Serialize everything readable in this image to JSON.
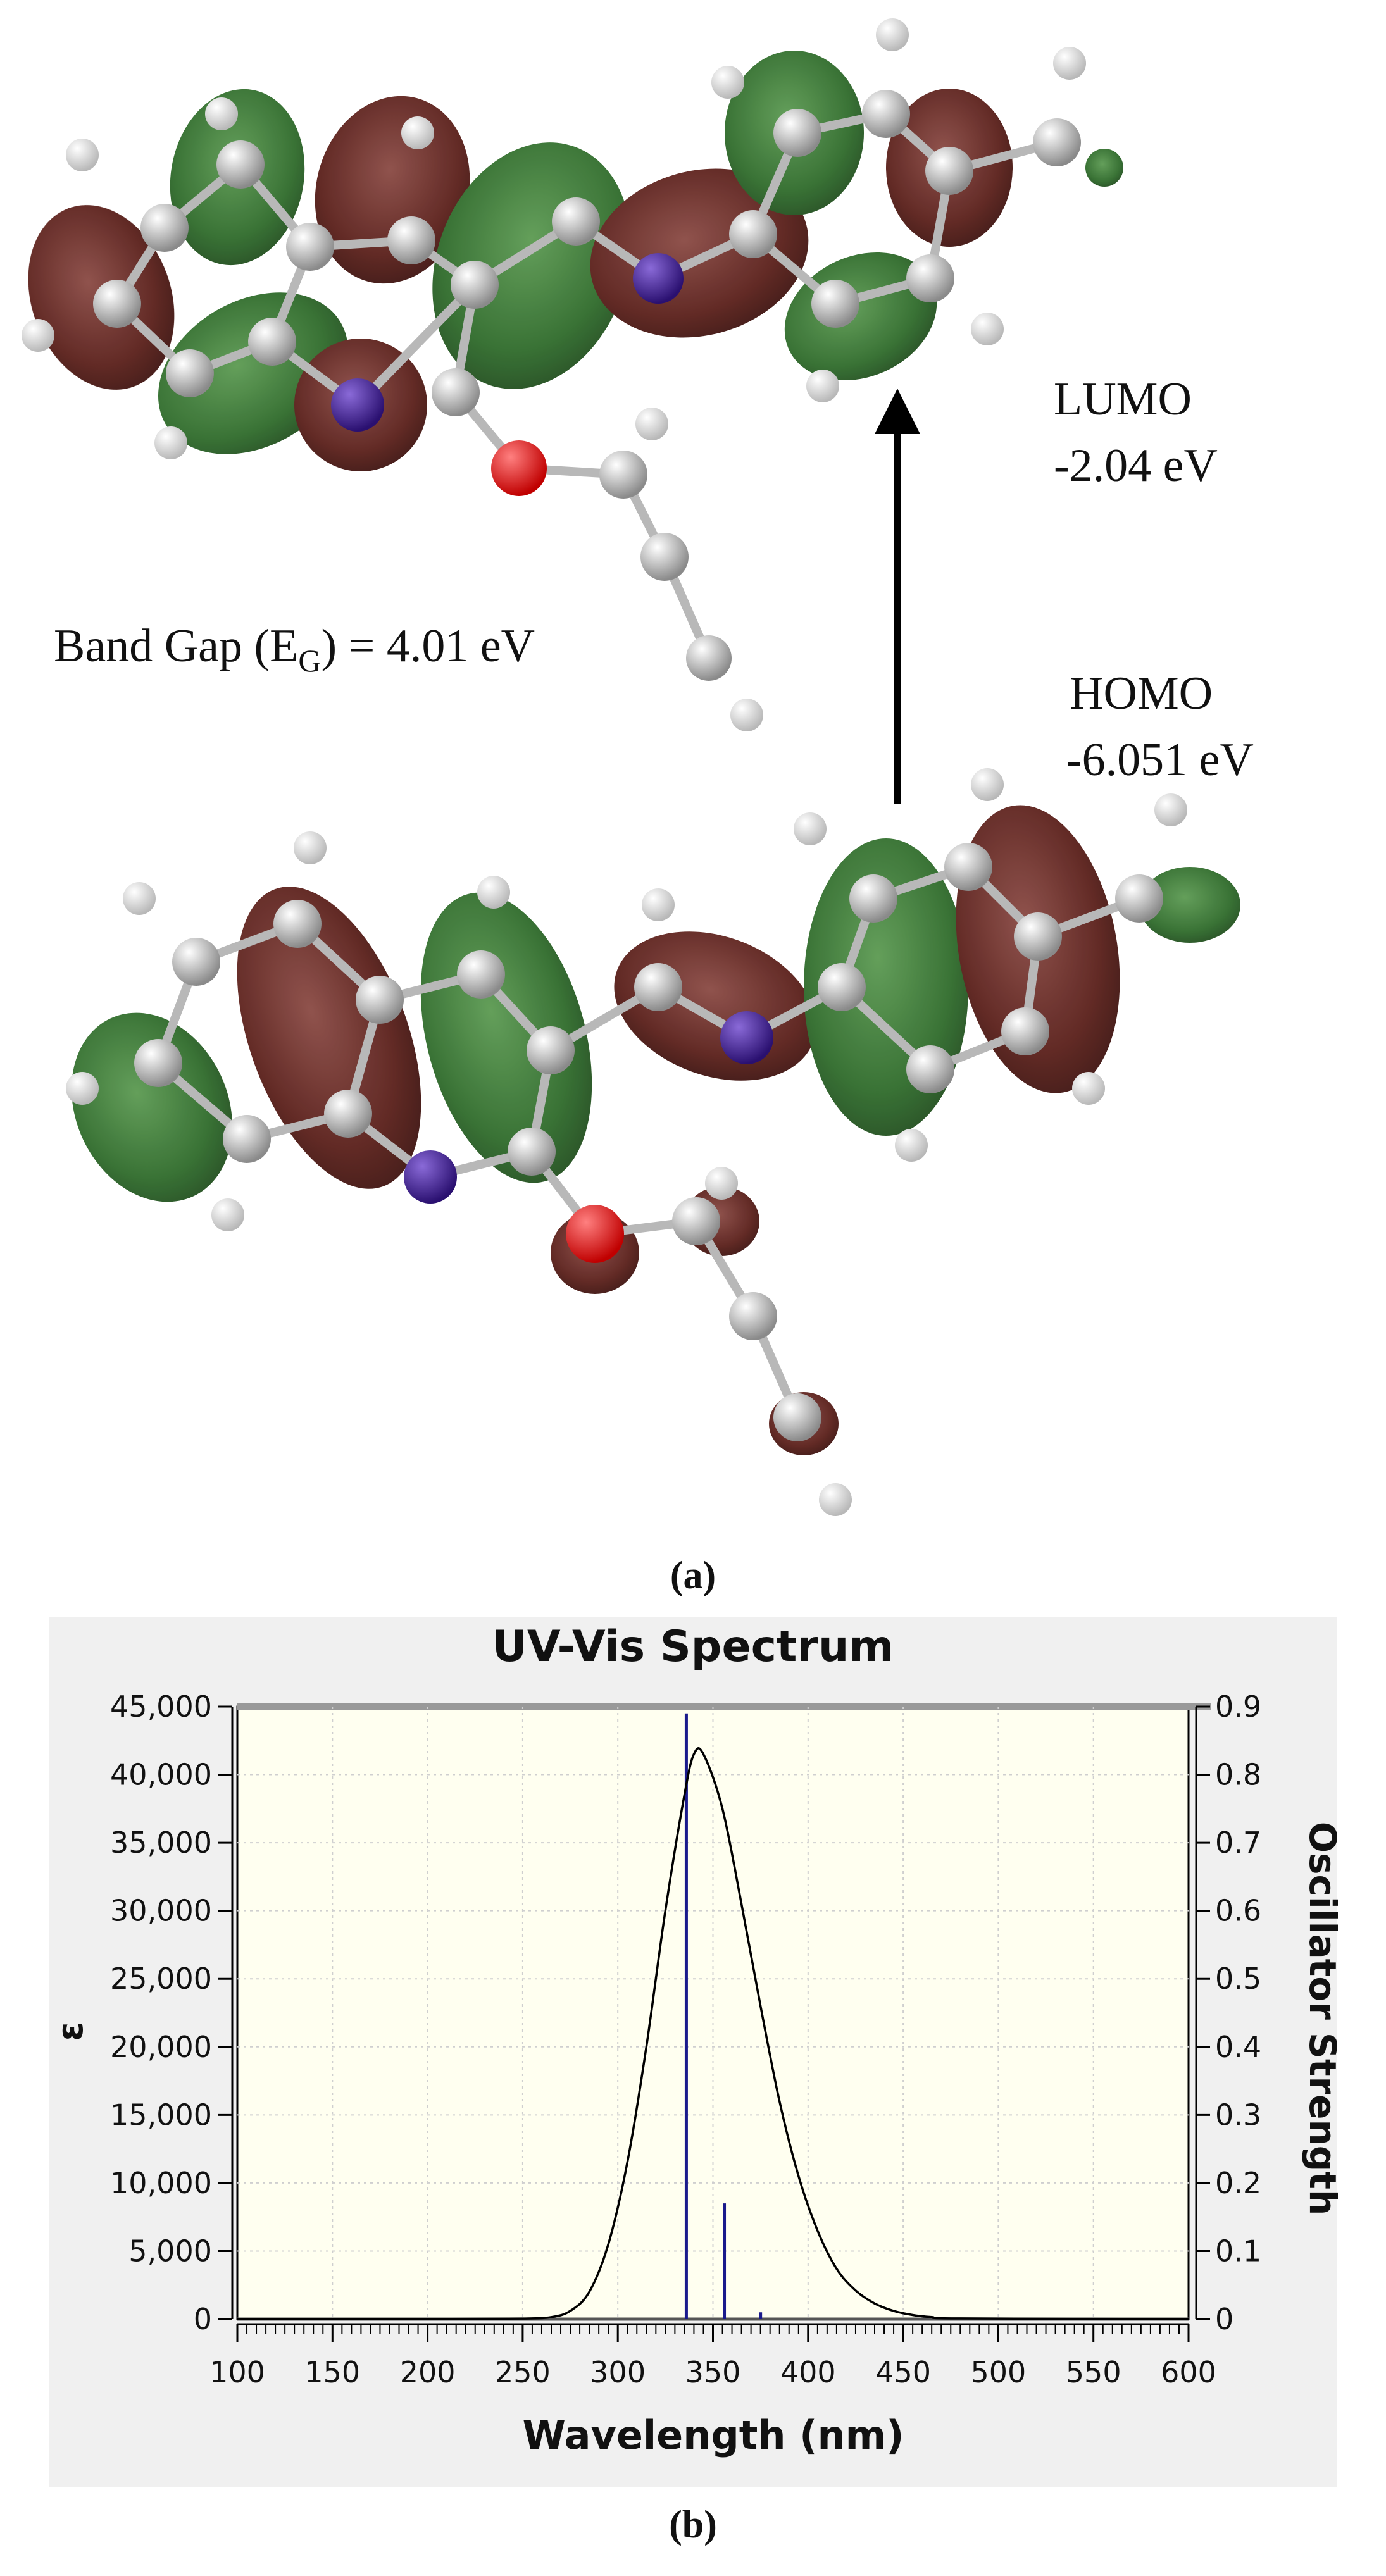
{
  "panel_a": {
    "label": "(a)",
    "lumo_label": "LUMO",
    "lumo_energy": "-2.04 eV",
    "homo_label": "HOMO",
    "homo_energy": "-6.051 eV",
    "band_gap_prefix": "Band Gap (E",
    "band_gap_sub": "G",
    "band_gap_suffix": ") = 4.01 eV",
    "colors": {
      "lobe_green": "#2f6b2b",
      "lobe_red": "#5a1f1a",
      "carbon": "#9a9a9a",
      "hydrogen": "#e6e6e6",
      "nitrogen": "#3a1f8f",
      "oxygen": "#d40000"
    }
  },
  "panel_b": {
    "label": "(b)"
  },
  "chart_data": {
    "type": "line",
    "title": "UV-Vis Spectrum",
    "xlabel": "Wavelength (nm)",
    "ylabel": "ε",
    "y2label": "Oscillator Strength",
    "xlim": [
      100,
      600
    ],
    "ylim": [
      0,
      45000
    ],
    "y2lim": [
      0,
      0.9
    ],
    "x_ticks": [
      "100",
      "150",
      "200",
      "250",
      "300",
      "350",
      "400",
      "450",
      "500",
      "550",
      "600"
    ],
    "y_ticks": [
      "0",
      "5,000",
      "10,000",
      "15,000",
      "20,000",
      "25,000",
      "30,000",
      "35,000",
      "40,000",
      "45,000"
    ],
    "y2_ticks": [
      "0",
      "0.1",
      "0.2",
      "0.3",
      "0.4",
      "0.5",
      "0.6",
      "0.7",
      "0.8",
      "0.9"
    ],
    "grid": true,
    "series": [
      {
        "kind": "curve",
        "x": [
          100,
          200,
          250,
          265,
          275,
          285,
          295,
          305,
          315,
          325,
          335,
          340,
          345,
          355,
          365,
          375,
          385,
          395,
          405,
          415,
          425,
          435,
          445,
          455,
          465,
          480,
          600
        ],
        "values": [
          0,
          0,
          40,
          150,
          600,
          2000,
          5500,
          11500,
          20000,
          30000,
          38500,
          41500,
          41500,
          37500,
          30500,
          23000,
          16000,
          10500,
          6500,
          3700,
          2100,
          1150,
          600,
          300,
          150,
          50,
          0
        ]
      },
      {
        "kind": "sticks",
        "x": [
          336,
          356,
          375
        ],
        "values": [
          0.89,
          0.17,
          0.01
        ]
      }
    ],
    "colors": {
      "curve": "#000000",
      "sticks": "#1a1a8c",
      "plot_bg": "#fffff0",
      "frame_bg": "#f0f0f0",
      "grid": "#cfcfcf"
    }
  }
}
